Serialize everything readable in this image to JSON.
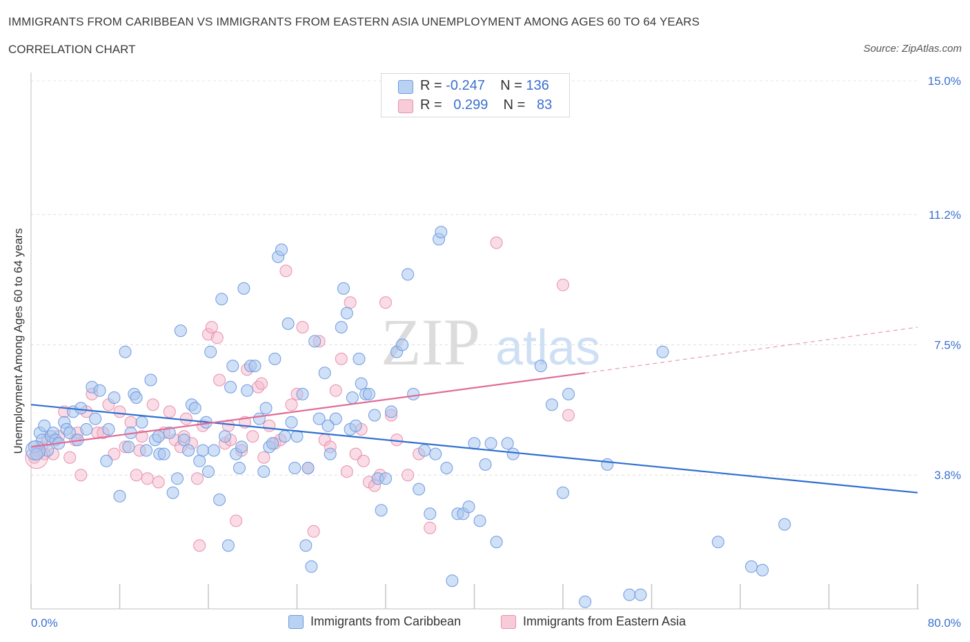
{
  "header": {
    "title": "IMMIGRANTS FROM CARIBBEAN VS IMMIGRANTS FROM EASTERN ASIA UNEMPLOYMENT AMONG AGES 60 TO 64 YEARS",
    "subtitle": "CORRELATION CHART",
    "source": "Source: ZipAtlas.com"
  },
  "stats": {
    "blue": {
      "r_label": "R =",
      "r_value": "-0.247",
      "n_label": "N =",
      "n_value": "136"
    },
    "pink": {
      "r_label": "R =",
      "r_value": "0.299",
      "n_label": "N =",
      "n_value": "83"
    }
  },
  "legend": {
    "blue_label": "Immigrants from Caribbean",
    "pink_label": "Immigrants from Eastern Asia"
  },
  "watermark": {
    "zip": "ZIP",
    "atlas": "atlas"
  },
  "colors": {
    "blue_fill": "#a9c6ef",
    "blue_stroke": "#6d9ae0",
    "blue_line": "#2f6fd0",
    "pink_fill": "#f4b9cb",
    "pink_stroke": "#e98fab",
    "pink_line": "#e06c97",
    "tick_label": "#3a6fd0"
  },
  "chart_data": {
    "type": "scatter",
    "title": "IMMIGRANTS FROM CARIBBEAN VS IMMIGRANTS FROM EASTERN ASIA UNEMPLOYMENT AMONG AGES 60 TO 64 YEARS",
    "xlabel": "",
    "ylabel": "Unemployment Among Ages 60 to 64 years",
    "xlim": [
      0,
      80
    ],
    "ylim": [
      0,
      15
    ],
    "x_tick_labels": [
      "0.0%",
      "80.0%"
    ],
    "y_ticks": [
      3.8,
      7.5,
      11.2,
      15.0
    ],
    "y_tick_labels": [
      "3.8%",
      "7.5%",
      "11.2%",
      "15.0%"
    ],
    "series": [
      {
        "name": "Immigrants from Caribbean",
        "color": "blue",
        "trend": {
          "x0": 0,
          "y0": 5.8,
          "x1": 80,
          "y1": 3.3
        },
        "points": [
          [
            0.3,
            4.6
          ],
          [
            0.5,
            4.4
          ],
          [
            0.8,
            5.0
          ],
          [
            1.0,
            4.8
          ],
          [
            1.2,
            5.2
          ],
          [
            1.5,
            4.5
          ],
          [
            1.8,
            4.9
          ],
          [
            2.0,
            5.0
          ],
          [
            2.2,
            4.8
          ],
          [
            2.5,
            4.7
          ],
          [
            3.0,
            5.3
          ],
          [
            3.2,
            5.1
          ],
          [
            3.5,
            5.0
          ],
          [
            3.8,
            5.6
          ],
          [
            4.2,
            4.8
          ],
          [
            4.5,
            5.7
          ],
          [
            5.0,
            5.1
          ],
          [
            5.5,
            6.3
          ],
          [
            5.8,
            5.4
          ],
          [
            6.2,
            6.2
          ],
          [
            6.8,
            4.2
          ],
          [
            7.0,
            5.1
          ],
          [
            7.5,
            6.0
          ],
          [
            8.0,
            3.2
          ],
          [
            8.5,
            7.3
          ],
          [
            9.0,
            5.0
          ],
          [
            9.3,
            6.1
          ],
          [
            9.5,
            6.0
          ],
          [
            10.0,
            5.3
          ],
          [
            10.4,
            4.5
          ],
          [
            10.8,
            6.5
          ],
          [
            11.2,
            4.8
          ],
          [
            11.6,
            4.4
          ],
          [
            12.0,
            4.4
          ],
          [
            12.5,
            5.0
          ],
          [
            12.8,
            3.3
          ],
          [
            13.2,
            3.7
          ],
          [
            13.5,
            7.9
          ],
          [
            13.8,
            4.8
          ],
          [
            14.2,
            4.5
          ],
          [
            14.5,
            5.8
          ],
          [
            14.8,
            5.7
          ],
          [
            15.2,
            4.2
          ],
          [
            15.5,
            4.5
          ],
          [
            15.8,
            5.3
          ],
          [
            16.2,
            7.3
          ],
          [
            16.5,
            4.5
          ],
          [
            17.0,
            3.1
          ],
          [
            17.2,
            8.8
          ],
          [
            17.5,
            4.9
          ],
          [
            17.8,
            1.8
          ],
          [
            18.0,
            6.3
          ],
          [
            18.2,
            6.9
          ],
          [
            18.5,
            4.4
          ],
          [
            18.8,
            4.0
          ],
          [
            19.0,
            4.6
          ],
          [
            19.2,
            9.1
          ],
          [
            19.5,
            6.2
          ],
          [
            19.8,
            6.9
          ],
          [
            20.2,
            6.9
          ],
          [
            20.6,
            5.4
          ],
          [
            21.0,
            3.9
          ],
          [
            21.2,
            5.7
          ],
          [
            21.5,
            4.6
          ],
          [
            21.8,
            4.7
          ],
          [
            22.0,
            7.1
          ],
          [
            22.3,
            10.0
          ],
          [
            22.6,
            10.2
          ],
          [
            22.9,
            4.9
          ],
          [
            23.2,
            8.1
          ],
          [
            23.5,
            5.3
          ],
          [
            23.8,
            4.0
          ],
          [
            24.0,
            4.9
          ],
          [
            24.5,
            6.1
          ],
          [
            24.8,
            1.8
          ],
          [
            25.0,
            4.0
          ],
          [
            25.3,
            1.2
          ],
          [
            25.6,
            7.6
          ],
          [
            26.0,
            5.4
          ],
          [
            26.5,
            6.7
          ],
          [
            27.0,
            4.4
          ],
          [
            27.5,
            5.4
          ],
          [
            28.0,
            8.0
          ],
          [
            28.2,
            9.1
          ],
          [
            28.5,
            8.4
          ],
          [
            28.8,
            5.1
          ],
          [
            29.0,
            6.0
          ],
          [
            29.3,
            5.2
          ],
          [
            29.6,
            7.1
          ],
          [
            29.8,
            6.4
          ],
          [
            30.2,
            6.1
          ],
          [
            30.5,
            6.1
          ],
          [
            31.0,
            5.5
          ],
          [
            31.3,
            3.7
          ],
          [
            31.6,
            2.8
          ],
          [
            32.0,
            3.7
          ],
          [
            32.5,
            5.6
          ],
          [
            33.0,
            7.3
          ],
          [
            33.5,
            7.5
          ],
          [
            34.0,
            9.5
          ],
          [
            34.5,
            6.1
          ],
          [
            35.0,
            3.4
          ],
          [
            35.5,
            4.5
          ],
          [
            36.0,
            2.7
          ],
          [
            36.5,
            4.4
          ],
          [
            36.8,
            10.5
          ],
          [
            37.0,
            10.7
          ],
          [
            37.5,
            4.0
          ],
          [
            38.0,
            0.8
          ],
          [
            38.5,
            2.7
          ],
          [
            39.0,
            2.7
          ],
          [
            39.5,
            2.9
          ],
          [
            40.0,
            4.7
          ],
          [
            40.5,
            2.5
          ],
          [
            41.0,
            4.1
          ],
          [
            41.5,
            4.7
          ],
          [
            42.0,
            1.9
          ],
          [
            43.0,
            4.7
          ],
          [
            43.5,
            4.4
          ],
          [
            46.0,
            6.9
          ],
          [
            47.0,
            5.8
          ],
          [
            48.0,
            3.3
          ],
          [
            48.5,
            6.1
          ],
          [
            50.0,
            0.2
          ],
          [
            52.0,
            4.1
          ],
          [
            54.0,
            0.4
          ],
          [
            55.0,
            0.4
          ],
          [
            57.0,
            7.3
          ],
          [
            62.0,
            1.9
          ],
          [
            65.0,
            1.2
          ],
          [
            66.0,
            1.1
          ],
          [
            68.0,
            2.4
          ],
          [
            11.5,
            4.9
          ],
          [
            16.0,
            3.9
          ],
          [
            26.8,
            5.2
          ],
          [
            8.8,
            4.6
          ]
        ]
      },
      {
        "name": "Immigrants from Eastern Asia",
        "color": "pink",
        "trend": {
          "x0": 0,
          "y0": 4.6,
          "x1": 50,
          "y1": 6.7,
          "x_ext": 80,
          "y_ext": 8.0
        },
        "points": [
          [
            0.3,
            4.3
          ],
          [
            0.6,
            4.5
          ],
          [
            1.0,
            4.6
          ],
          [
            1.5,
            4.8
          ],
          [
            2.0,
            4.4
          ],
          [
            2.5,
            4.9
          ],
          [
            3.0,
            5.6
          ],
          [
            3.5,
            4.3
          ],
          [
            4.0,
            4.8
          ],
          [
            4.5,
            3.8
          ],
          [
            5.0,
            5.6
          ],
          [
            5.5,
            6.1
          ],
          [
            6.0,
            5.0
          ],
          [
            6.5,
            5.0
          ],
          [
            7.0,
            5.8
          ],
          [
            7.5,
            4.4
          ],
          [
            8.0,
            5.6
          ],
          [
            8.5,
            4.6
          ],
          [
            9.0,
            5.3
          ],
          [
            9.5,
            3.8
          ],
          [
            10.0,
            4.9
          ],
          [
            10.5,
            3.7
          ],
          [
            11.0,
            5.8
          ],
          [
            11.5,
            3.6
          ],
          [
            12.0,
            5.0
          ],
          [
            12.5,
            5.6
          ],
          [
            13.0,
            4.8
          ],
          [
            13.5,
            4.6
          ],
          [
            14.0,
            5.4
          ],
          [
            14.5,
            4.7
          ],
          [
            15.0,
            3.7
          ],
          [
            15.5,
            5.2
          ],
          [
            16.0,
            7.8
          ],
          [
            16.3,
            8.0
          ],
          [
            16.8,
            7.7
          ],
          [
            17.0,
            6.5
          ],
          [
            17.5,
            4.7
          ],
          [
            17.8,
            5.2
          ],
          [
            18.0,
            4.8
          ],
          [
            18.5,
            2.5
          ],
          [
            19.0,
            4.5
          ],
          [
            19.5,
            6.8
          ],
          [
            20.0,
            4.9
          ],
          [
            20.5,
            6.3
          ],
          [
            20.8,
            6.4
          ],
          [
            21.0,
            4.3
          ],
          [
            21.5,
            5.2
          ],
          [
            22.0,
            4.7
          ],
          [
            22.5,
            4.8
          ],
          [
            23.0,
            9.6
          ],
          [
            23.5,
            5.8
          ],
          [
            24.0,
            6.1
          ],
          [
            24.5,
            8.0
          ],
          [
            25.0,
            4.0
          ],
          [
            25.5,
            2.2
          ],
          [
            26.0,
            7.6
          ],
          [
            26.5,
            4.8
          ],
          [
            27.0,
            4.6
          ],
          [
            27.5,
            6.2
          ],
          [
            28.0,
            7.1
          ],
          [
            28.5,
            3.9
          ],
          [
            28.8,
            8.7
          ],
          [
            29.3,
            4.4
          ],
          [
            29.8,
            5.1
          ],
          [
            30.0,
            4.2
          ],
          [
            30.5,
            3.6
          ],
          [
            31.0,
            3.5
          ],
          [
            31.5,
            3.8
          ],
          [
            32.0,
            8.7
          ],
          [
            32.5,
            5.5
          ],
          [
            33.0,
            4.8
          ],
          [
            34.0,
            3.8
          ],
          [
            35.0,
            4.4
          ],
          [
            36.0,
            2.3
          ],
          [
            42.0,
            10.4
          ],
          [
            48.0,
            9.2
          ],
          [
            48.5,
            5.5
          ],
          [
            1.2,
            4.4
          ],
          [
            4.2,
            5.0
          ],
          [
            9.8,
            4.5
          ],
          [
            13.8,
            4.9
          ],
          [
            15.2,
            1.8
          ],
          [
            19.3,
            5.3
          ]
        ]
      }
    ]
  }
}
